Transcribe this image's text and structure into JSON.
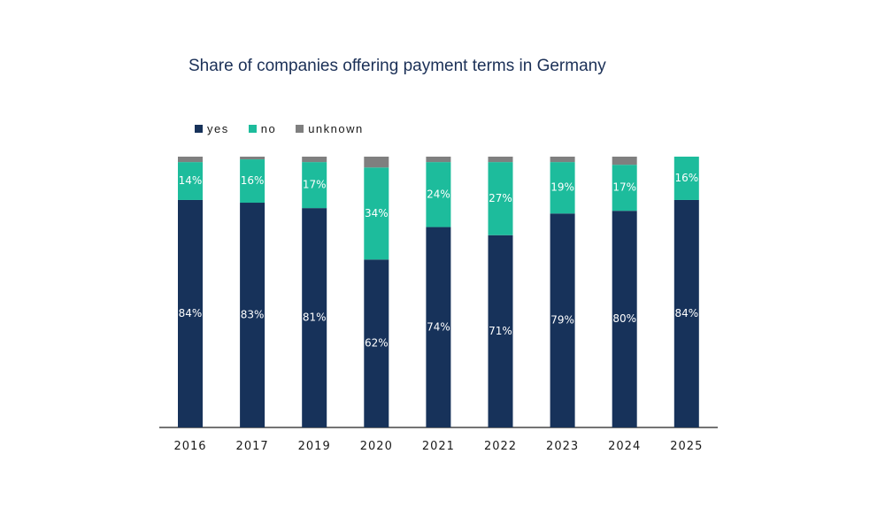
{
  "chart_data": {
    "type": "bar",
    "stacked": true,
    "title": "Share of companies offering payment terms in Germany",
    "xlabel": "",
    "ylabel": "",
    "ylim": [
      0,
      100
    ],
    "grid": false,
    "legend_position": "top-left",
    "categories": [
      "2016",
      "2017",
      "2019",
      "2020",
      "2021",
      "2022",
      "2023",
      "2024",
      "2025"
    ],
    "series": [
      {
        "name": "yes",
        "color": "#17325a",
        "values": [
          84,
          83,
          81,
          62,
          74,
          71,
          79,
          80,
          84
        ],
        "labels": [
          "84%",
          "83%",
          "81%",
          "62%",
          "74%",
          "71%",
          "79%",
          "80%",
          "84%"
        ]
      },
      {
        "name": "no",
        "color": "#1dbc9c",
        "values": [
          14,
          16,
          17,
          34,
          24,
          27,
          19,
          17,
          16
        ],
        "labels": [
          "14%",
          "16%",
          "17%",
          "34%",
          "24%",
          "27%",
          "19%",
          "17%",
          "16%"
        ]
      },
      {
        "name": "unknown",
        "color": "#7f7f7f",
        "values": [
          2,
          1,
          2,
          4,
          2,
          2,
          2,
          3,
          0
        ],
        "labels": [
          "",
          "",
          "",
          "",
          "",
          "",
          "",
          "",
          ""
        ]
      }
    ]
  }
}
